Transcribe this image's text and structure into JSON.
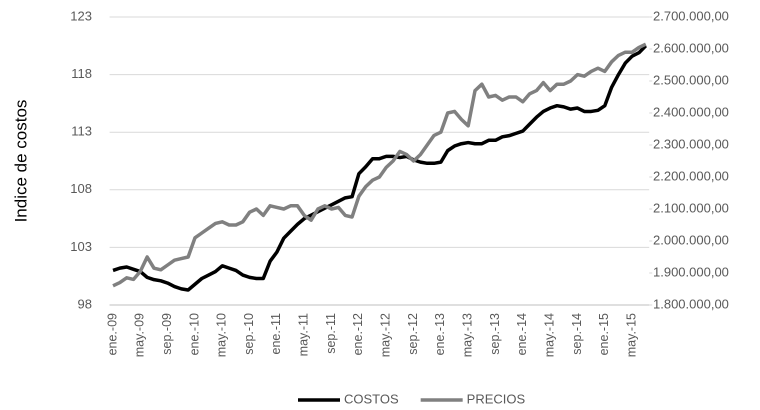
{
  "chart_data": {
    "type": "line",
    "y_label": "Indice de costos",
    "categories": [
      "ene.-09",
      null,
      null,
      null,
      "may.-09",
      null,
      null,
      null,
      "sep.-09",
      null,
      null,
      null,
      "ene.-10",
      null,
      null,
      null,
      "may.-10",
      null,
      null,
      null,
      "sep.-10",
      null,
      null,
      null,
      "ene.-11",
      null,
      null,
      null,
      "may.-11",
      null,
      null,
      null,
      "sep.-11",
      null,
      null,
      null,
      "ene.-12",
      null,
      null,
      null,
      "may.-12",
      null,
      null,
      null,
      "sep.-12",
      null,
      null,
      null,
      "ene.-13",
      null,
      null,
      null,
      "may.-13",
      null,
      null,
      null,
      "sep.-13",
      null,
      null,
      null,
      "ene.-14",
      null,
      null,
      null,
      "may.-14",
      null,
      null,
      null,
      "sep.-14",
      null,
      null,
      null,
      "ene.-15",
      null,
      null,
      null,
      "may.-15",
      null,
      null
    ],
    "series": [
      {
        "name": "COSTOS",
        "color": "#000000",
        "axis": "y",
        "values": [
          101.0,
          101.2,
          101.3,
          101.1,
          100.9,
          100.4,
          100.2,
          100.1,
          99.9,
          99.6,
          99.4,
          99.3,
          99.8,
          100.3,
          100.6,
          100.9,
          101.4,
          101.2,
          101.0,
          100.6,
          100.4,
          100.3,
          100.3,
          101.8,
          102.6,
          103.8,
          104.4,
          105.0,
          105.5,
          105.8,
          106.1,
          106.4,
          106.7,
          107.0,
          107.3,
          107.4,
          109.4,
          110.0,
          110.7,
          110.7,
          110.9,
          110.9,
          110.8,
          110.9,
          110.6,
          110.4,
          110.3,
          110.3,
          110.4,
          111.4,
          111.8,
          112.0,
          112.1,
          112.0,
          112.0,
          112.3,
          112.3,
          112.6,
          112.7,
          112.9,
          113.1,
          113.7,
          114.3,
          114.8,
          115.1,
          115.3,
          115.2,
          115.0,
          115.1,
          114.8,
          114.8,
          114.9,
          115.3,
          116.9,
          118.0,
          119.0,
          119.6,
          119.9,
          120.5
        ]
      },
      {
        "name": "PRECIOS",
        "color": "#808080",
        "axis": "y2",
        "values": [
          1860000,
          1870000,
          1885000,
          1880000,
          1905000,
          1950000,
          1915000,
          1910000,
          1925000,
          1940000,
          1945000,
          1950000,
          2010000,
          2025000,
          2040000,
          2055000,
          2060000,
          2050000,
          2050000,
          2060000,
          2090000,
          2100000,
          2080000,
          2110000,
          2105000,
          2100000,
          2110000,
          2110000,
          2080000,
          2065000,
          2100000,
          2110000,
          2100000,
          2105000,
          2080000,
          2075000,
          2140000,
          2170000,
          2190000,
          2200000,
          2230000,
          2250000,
          2280000,
          2270000,
          2250000,
          2270000,
          2300000,
          2330000,
          2340000,
          2400000,
          2405000,
          2380000,
          2360000,
          2470000,
          2490000,
          2450000,
          2455000,
          2440000,
          2450000,
          2450000,
          2435000,
          2460000,
          2470000,
          2495000,
          2470000,
          2490000,
          2490000,
          2500000,
          2520000,
          2515000,
          2530000,
          2540000,
          2530000,
          2560000,
          2580000,
          2590000,
          2590000,
          2605000,
          2615000
        ]
      }
    ],
    "ylim": [
      98,
      123
    ],
    "yticks": [
      98,
      103,
      108,
      113,
      118,
      123
    ],
    "y2lim": [
      1800000,
      2700000
    ],
    "y2ticks": [
      {
        "value": 1800000,
        "label": "1.800.000,00"
      },
      {
        "value": 1900000,
        "label": "1.900.000,00"
      },
      {
        "value": 2000000,
        "label": "2.000.000,00"
      },
      {
        "value": 2100000,
        "label": "2.100.000,00"
      },
      {
        "value": 2200000,
        "label": "2.200.000,00"
      },
      {
        "value": 2300000,
        "label": "2.300.000,00"
      },
      {
        "value": 2400000,
        "label": "2.400.000,00"
      },
      {
        "value": 2500000,
        "label": "2.500.000,00"
      },
      {
        "value": 2600000,
        "label": "2.600.000,00"
      },
      {
        "value": 2700000,
        "label": "2.700.000,00"
      }
    ],
    "grid": true,
    "legend": "bottom"
  }
}
